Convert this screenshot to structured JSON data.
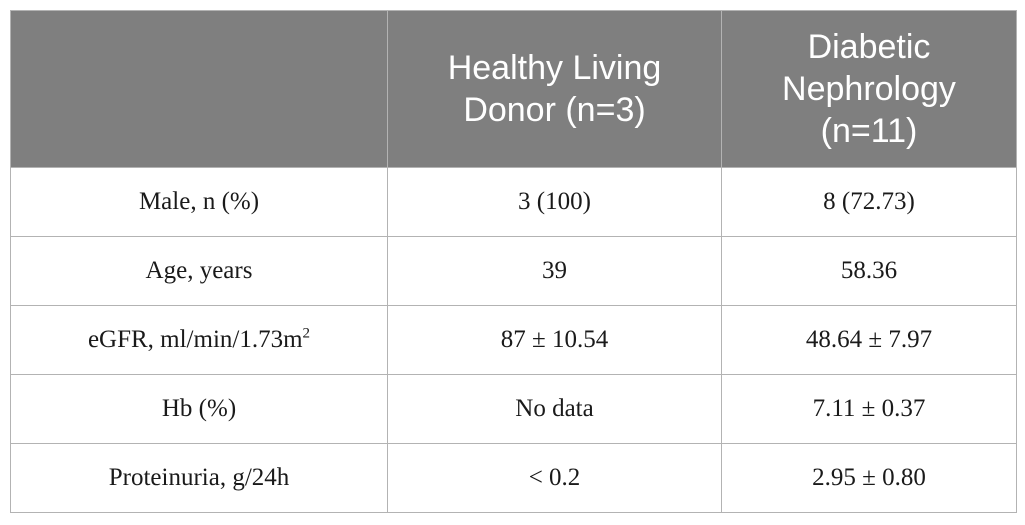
{
  "table": {
    "headers": [
      "",
      "Healthy Living Donor (n=3)",
      "Diabetic Nephrology (n=11)"
    ],
    "rows": [
      {
        "label": "Male, n (%)",
        "label_sup": "",
        "healthy": "3 (100)",
        "diabetic": "8 (72.73)"
      },
      {
        "label": "Age, years",
        "label_sup": "",
        "healthy": "39",
        "diabetic": "58.36"
      },
      {
        "label": "eGFR, ml/min/1.73m",
        "label_sup": "2",
        "healthy": "87 ± 10.54",
        "diabetic": "48.64 ± 7.97"
      },
      {
        "label": "Hb (%)",
        "label_sup": "",
        "healthy": "No data",
        "diabetic": "7.11 ± 0.37"
      },
      {
        "label": "Proteinuria, g/24h",
        "label_sup": "",
        "healthy": "< 0.2",
        "diabetic": "2.95 ± 0.80"
      }
    ]
  },
  "colors": {
    "header_bg": "#7f7f7f",
    "header_text": "#ffffff",
    "border": "#b3b3b3",
    "body_text": "#1a1a1a"
  }
}
